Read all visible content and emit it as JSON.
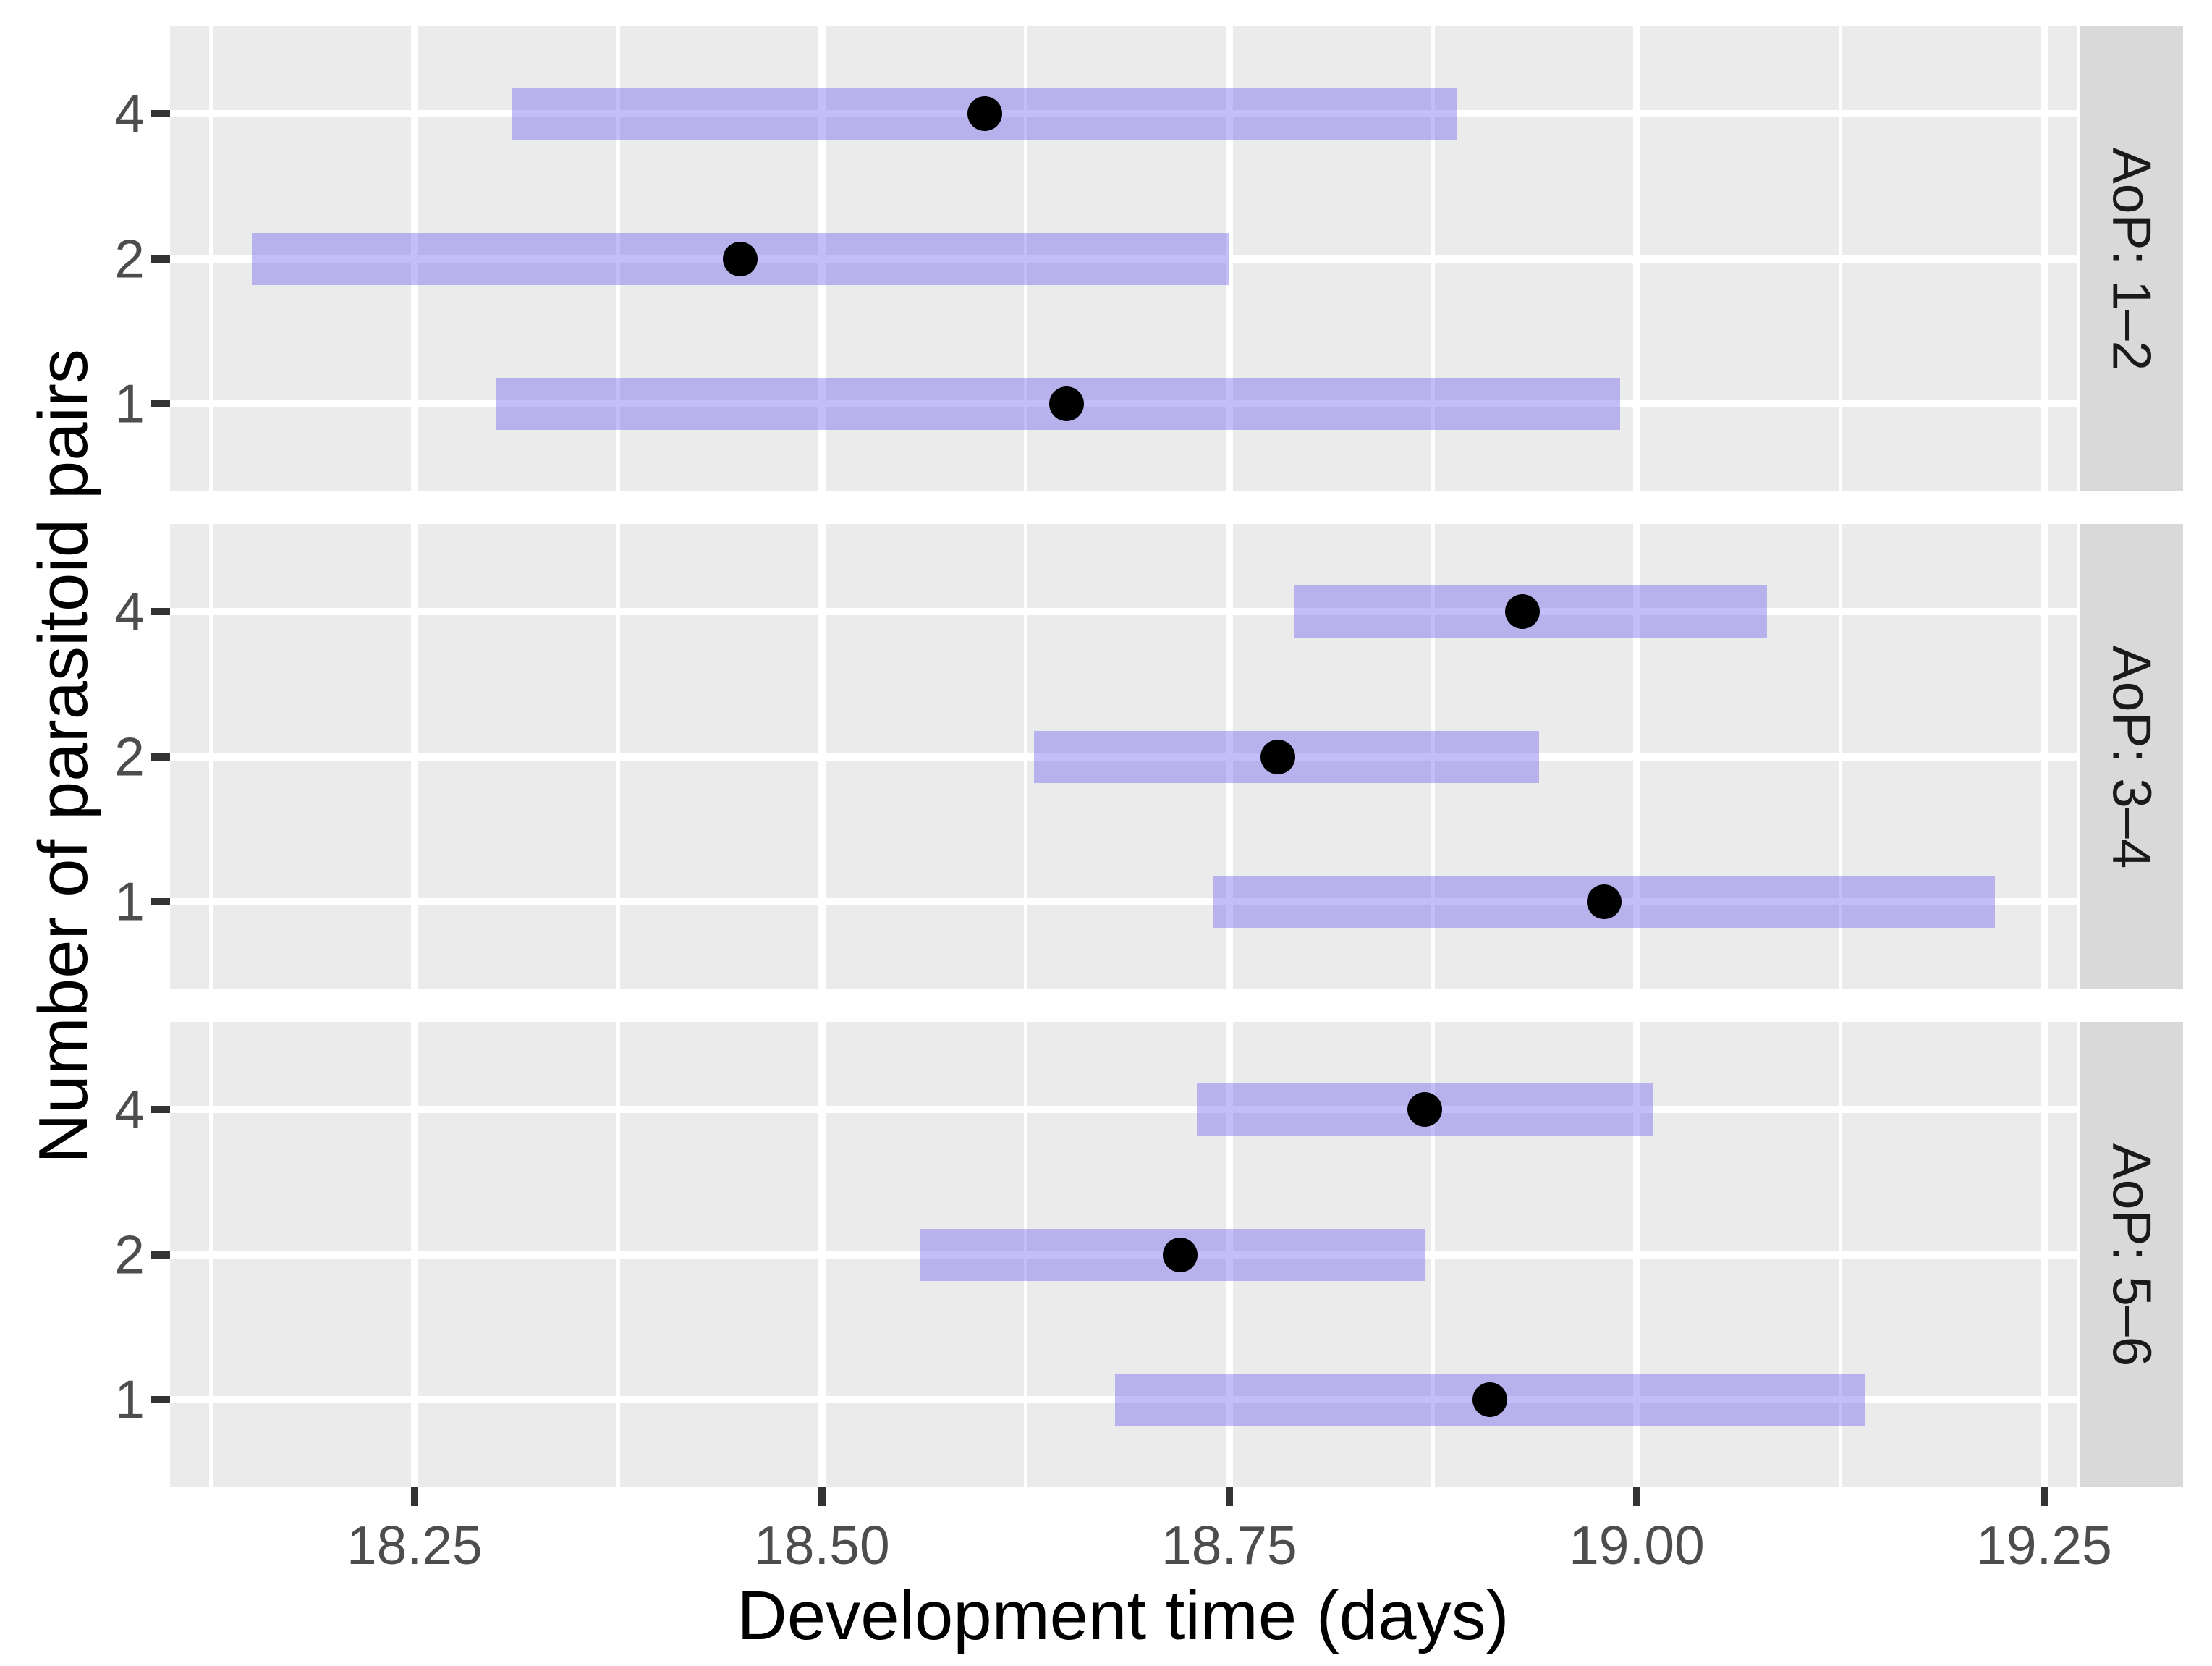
{
  "figure": {
    "background": "#FFFFFF",
    "panel_background": "#EBEBEB",
    "grid_color": "#FFFFFF",
    "strip_background": "#D9D9D9",
    "strip_text_color": "#1A1A1A",
    "axis_text_color": "#4D4D4D",
    "axis_title_color": "#000000",
    "tick_mark_color": "#333333",
    "bar_color": "rgba(112,100,237,0.42)",
    "point_color": "#000000"
  },
  "chart_data": {
    "type": "pointrange",
    "orientation": "horizontal",
    "title": "",
    "xlabel": "Development time (days)",
    "ylabel": "Number of parasitoid pairs",
    "xlim": [
      18.1,
      19.27
    ],
    "x_ticks": [
      18.25,
      18.5,
      18.75,
      19.0,
      19.25
    ],
    "x_tick_labels": [
      "18.25",
      "18.50",
      "18.75",
      "19.00",
      "19.25"
    ],
    "x_minor_ticks": [
      18.125,
      18.375,
      18.625,
      18.875,
      19.125
    ],
    "grid": "major-white-and-minor-white-on-gray",
    "legend_position": "none",
    "facet_strip_side": "right",
    "y_categories_top_to_bottom": [
      "4",
      "2",
      "1"
    ],
    "facets": [
      {
        "label": "AoP: 1–2",
        "rows": [
          {
            "pairs": "4",
            "estimate": 18.6,
            "lower": 18.31,
            "upper": 18.89
          },
          {
            "pairs": "2",
            "estimate": 18.45,
            "lower": 18.15,
            "upper": 18.75
          },
          {
            "pairs": "1",
            "estimate": 18.65,
            "lower": 18.3,
            "upper": 18.99
          }
        ]
      },
      {
        "label": "AoP: 3–4",
        "rows": [
          {
            "pairs": "4",
            "estimate": 18.93,
            "lower": 18.79,
            "upper": 19.08
          },
          {
            "pairs": "2",
            "estimate": 18.78,
            "lower": 18.63,
            "upper": 18.94
          },
          {
            "pairs": "1",
            "estimate": 18.98,
            "lower": 18.74,
            "upper": 19.22
          }
        ]
      },
      {
        "label": "AoP: 5–6",
        "rows": [
          {
            "pairs": "4",
            "estimate": 18.87,
            "lower": 18.73,
            "upper": 19.01
          },
          {
            "pairs": "2",
            "estimate": 18.72,
            "lower": 18.56,
            "upper": 18.87
          },
          {
            "pairs": "1",
            "estimate": 18.91,
            "lower": 18.68,
            "upper": 19.14
          }
        ]
      }
    ]
  }
}
